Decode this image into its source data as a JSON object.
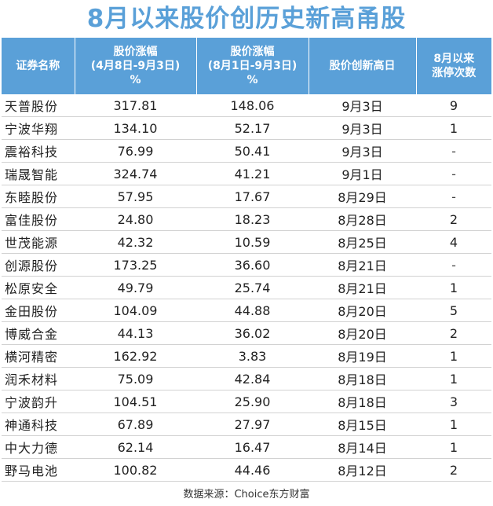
{
  "title": "8月以来股价创历史新高甬股",
  "table": {
    "headers": [
      [
        "证券名称"
      ],
      [
        "股价涨幅",
        "(4月8日-9月3日)",
        "%"
      ],
      [
        "股价涨幅",
        "(8月1日-9月3日)",
        "%"
      ],
      [
        "股价创新高日"
      ],
      [
        "8月以来",
        "涨停次数"
      ]
    ],
    "rows": [
      [
        "天普股份",
        "317.81",
        "148.06",
        "9月3日",
        "9"
      ],
      [
        "宁波华翔",
        "134.10",
        "52.17",
        "9月3日",
        "1"
      ],
      [
        "震裕科技",
        "76.99",
        "50.41",
        "9月3日",
        "-"
      ],
      [
        "瑞晟智能",
        "324.74",
        "41.21",
        "9月1日",
        "-"
      ],
      [
        "东睦股份",
        "57.95",
        "17.67",
        "8月29日",
        "-"
      ],
      [
        "富佳股份",
        "24.80",
        "18.23",
        "8月28日",
        "2"
      ],
      [
        "世茂能源",
        "42.32",
        "10.59",
        "8月25日",
        "4"
      ],
      [
        "创源股份",
        "173.25",
        "36.60",
        "8月21日",
        "-"
      ],
      [
        "松原安全",
        "49.79",
        "25.74",
        "8月21日",
        "1"
      ],
      [
        "金田股份",
        "104.09",
        "44.88",
        "8月20日",
        "5"
      ],
      [
        "博威合金",
        "44.13",
        "36.02",
        "8月20日",
        "2"
      ],
      [
        "横河精密",
        "162.92",
        "3.83",
        "8月19日",
        "1"
      ],
      [
        "润禾材料",
        "75.09",
        "42.84",
        "8月18日",
        "1"
      ],
      [
        "宁波韵升",
        "104.51",
        "25.90",
        "8月18日",
        "3"
      ],
      [
        "神通科技",
        "67.89",
        "27.97",
        "8月15日",
        "1"
      ],
      [
        "中大力德",
        "62.14",
        "16.47",
        "8月14日",
        "1"
      ],
      [
        "野马电池",
        "100.82",
        "44.46",
        "8月12日",
        "2"
      ]
    ]
  },
  "source": "数据来源：Choice东方财富",
  "colors": {
    "accent": "#5aa0d8",
    "header_text": "#ffffff",
    "row_border": "#d2d2d2"
  }
}
